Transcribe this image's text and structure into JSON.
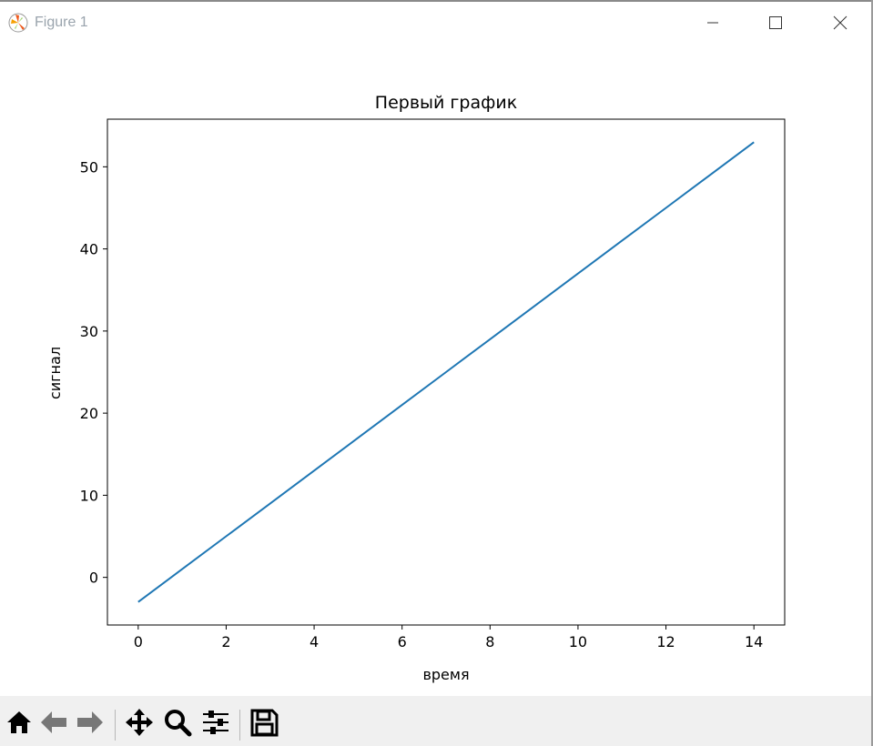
{
  "window": {
    "title": "Figure 1",
    "controls": [
      "minimize",
      "maximize",
      "close"
    ]
  },
  "toolbar": {
    "buttons": [
      "home-icon",
      "back-icon",
      "forward-icon",
      "pan-icon",
      "zoom-icon",
      "subplots-icon",
      "save-icon"
    ]
  },
  "chart_data": {
    "type": "line",
    "title": "Первый график",
    "xlabel": "время",
    "ylabel": "сигнал",
    "x": [
      0,
      1,
      2,
      3,
      4,
      5,
      6,
      7,
      8,
      9,
      10,
      11,
      12,
      13,
      14
    ],
    "series": [
      {
        "values": [
          -3,
          1,
          5,
          9,
          13,
          17,
          21,
          25,
          29,
          33,
          37,
          41,
          45,
          49,
          53
        ],
        "color": "#1f77b4"
      }
    ],
    "xlim": [
      -0.7,
      14.7
    ],
    "ylim": [
      -5.8,
      55.8
    ],
    "xticks": [
      0,
      2,
      4,
      6,
      8,
      10,
      12,
      14
    ],
    "yticks": [
      0,
      10,
      20,
      30,
      40,
      50
    ],
    "grid": false
  }
}
